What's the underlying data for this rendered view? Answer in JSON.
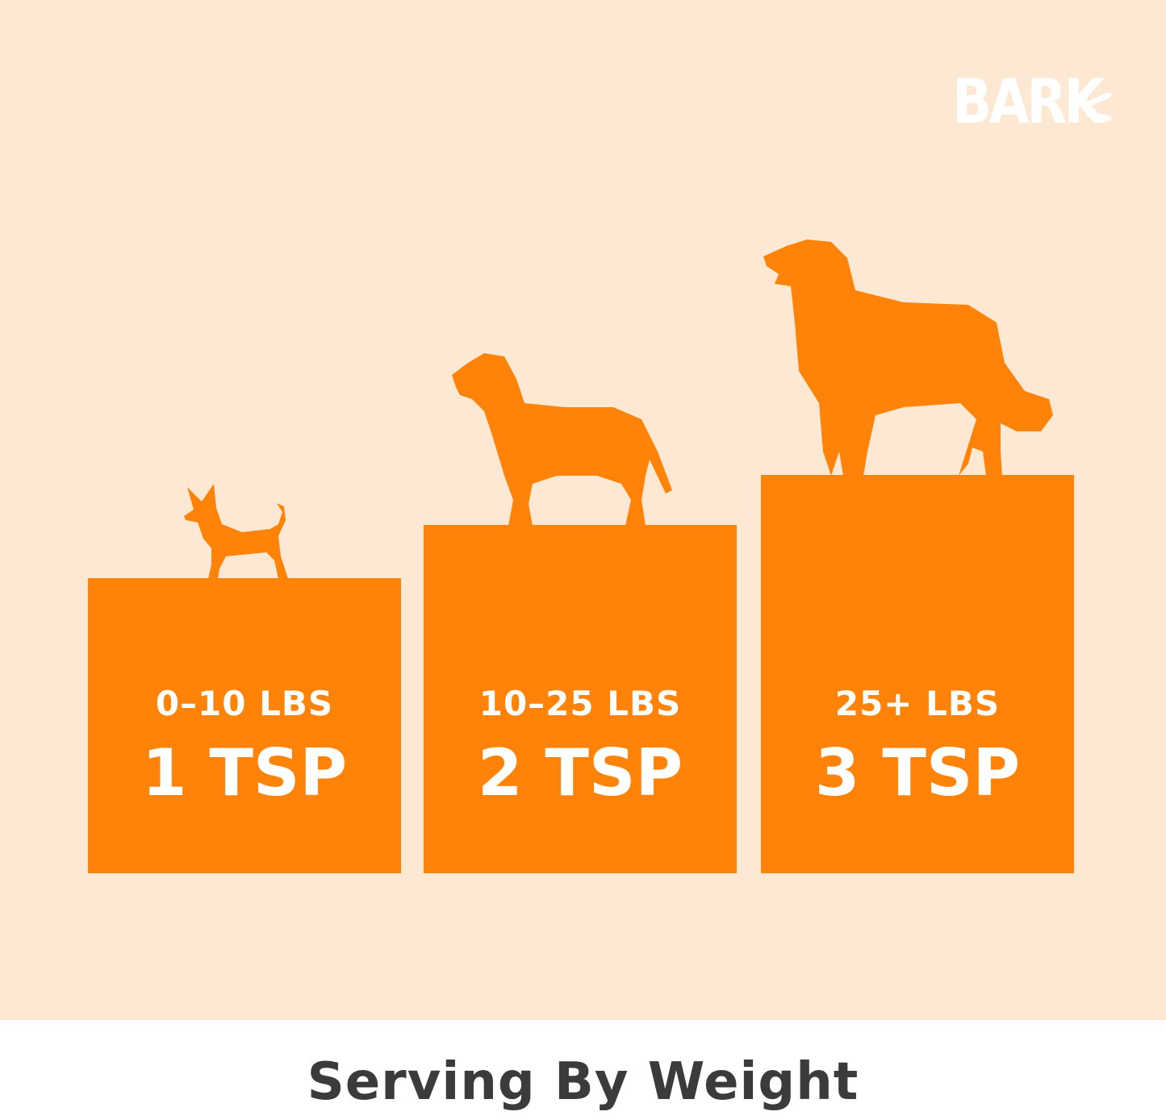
{
  "colors": {
    "background": "#FDE8D4",
    "accent": "#FF8308",
    "title": "#3b3b3b",
    "logo": "#FFFFFF"
  },
  "logo": {
    "text": "BARK"
  },
  "tiers": [
    {
      "weight": "0–10 LBS",
      "dose": "1 TSP",
      "icon": "small-dog-silhouette"
    },
    {
      "weight": "10–25 LBS",
      "dose": "2 TSP",
      "icon": "medium-dog-silhouette"
    },
    {
      "weight": "25+ LBS",
      "dose": "3 TSP",
      "icon": "large-dog-silhouette"
    }
  ],
  "title": "Serving By Weight"
}
